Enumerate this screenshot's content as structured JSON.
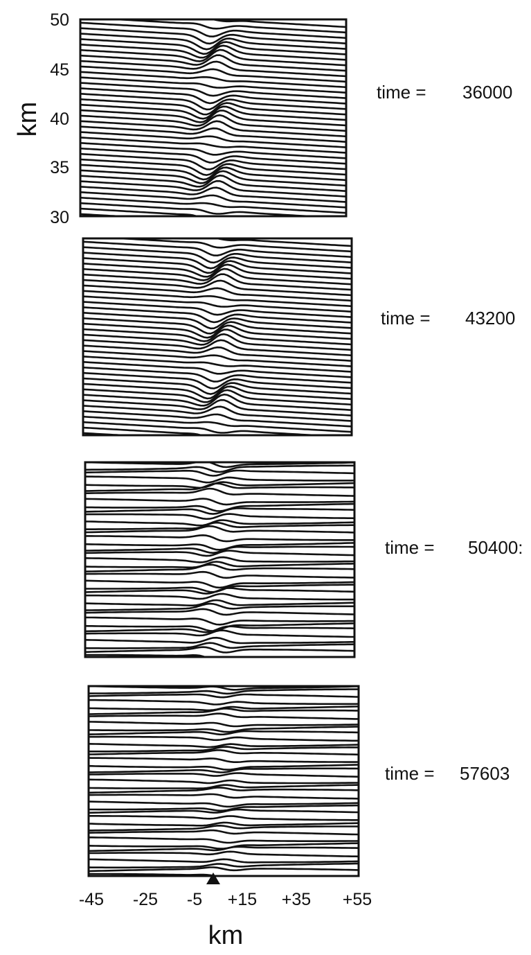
{
  "chart_data": [
    {
      "type": "contour",
      "panel_label": "time =",
      "time_value": "36000",
      "disturbance": {
        "center_km": 5,
        "tilt": true,
        "amplitude": 1.0
      },
      "x_range_km": [
        -50,
        60
      ],
      "y_range_km": [
        30,
        50
      ]
    },
    {
      "type": "contour",
      "panel_label": "time =",
      "time_value": "43200",
      "disturbance": {
        "center_km": 5,
        "tilt": true,
        "amplitude": 1.0
      },
      "x_range_km": [
        -50,
        60
      ],
      "y_range_km": [
        30,
        50
      ]
    },
    {
      "type": "contour",
      "panel_label": "time =",
      "time_value": "50400:",
      "disturbance": {
        "center_km": 3,
        "tilt": false,
        "amplitude": 0.7
      },
      "x_range_km": [
        -50,
        60
      ],
      "y_range_km": [
        30,
        50
      ]
    },
    {
      "type": "contour",
      "panel_label": "time =",
      "time_value": "57603",
      "disturbance": {
        "center_km": 5,
        "tilt": false,
        "amplitude": 0.4
      },
      "x_range_km": [
        -50,
        60
      ],
      "y_range_km": [
        30,
        50
      ]
    }
  ],
  "y_axis": {
    "label": "km",
    "ticks": [
      "50",
      "45",
      "40",
      "35",
      "30"
    ]
  },
  "x_axis": {
    "label": "km",
    "ticks": [
      "-45",
      "-25",
      "-5",
      "+15",
      "+35",
      "+55"
    ]
  },
  "marker": {
    "shape": "triangle",
    "x_km": 8
  }
}
